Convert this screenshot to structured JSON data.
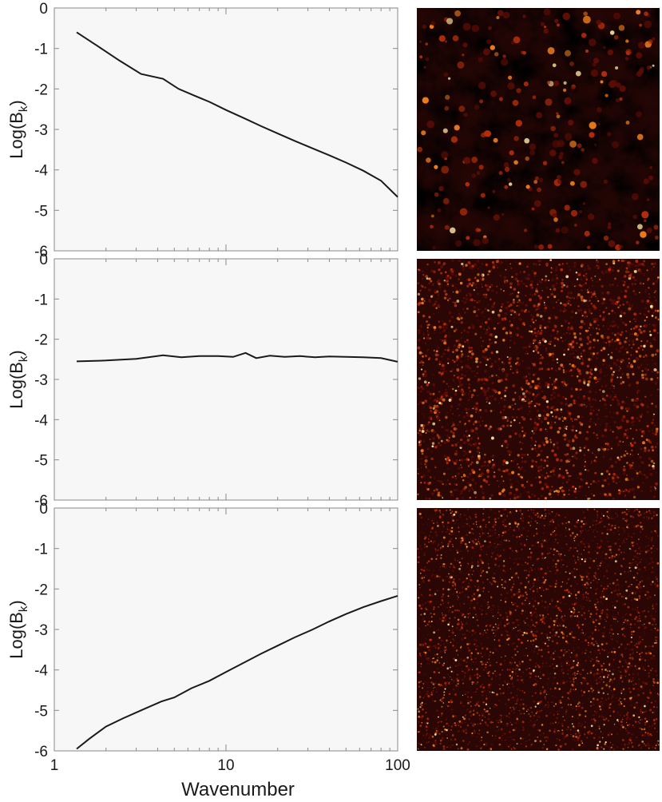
{
  "chart_data": [
    {
      "type": "line",
      "xscale": "log",
      "xlim": [
        1,
        100
      ],
      "ylim": [
        -6,
        0
      ],
      "xticks": [
        "1",
        "10",
        "100"
      ],
      "yticks": [
        "0",
        "-1",
        "-2",
        "-3",
        "-4",
        "-5",
        "-6"
      ],
      "ylabel": "Log(B",
      "ylabel_sub": "k",
      "xlabel": "",
      "grid": false,
      "series": [
        {
          "x": [
            1.35,
            1.8,
            2.4,
            3.2,
            4.3,
            5.3,
            6.5,
            8,
            10,
            13,
            16,
            20,
            25,
            32,
            40,
            50,
            63,
            80,
            105
          ],
          "y": [
            -0.6,
            -0.95,
            -1.3,
            -1.63,
            -1.75,
            -2.0,
            -2.16,
            -2.32,
            -2.52,
            -2.74,
            -2.92,
            -3.1,
            -3.28,
            -3.47,
            -3.64,
            -3.82,
            -4.02,
            -4.27,
            -4.67
          ]
        }
      ]
    },
    {
      "type": "line",
      "xscale": "log",
      "xlim": [
        1,
        100
      ],
      "ylim": [
        -6,
        0
      ],
      "xticks": [
        "1",
        "10",
        "100"
      ],
      "yticks": [
        "0",
        "-1",
        "-2",
        "-3",
        "-4",
        "-5",
        "-6"
      ],
      "ylabel": "Log(B",
      "ylabel_sub": "k",
      "xlabel": "",
      "grid": false,
      "series": [
        {
          "x": [
            1.35,
            2,
            3,
            4.3,
            5.5,
            7,
            9,
            11,
            13,
            15,
            18,
            22,
            27,
            33,
            40,
            50,
            63,
            80,
            105
          ],
          "y": [
            -2.55,
            -2.53,
            -2.49,
            -2.4,
            -2.45,
            -2.42,
            -2.42,
            -2.44,
            -2.34,
            -2.47,
            -2.41,
            -2.44,
            -2.42,
            -2.45,
            -2.43,
            -2.44,
            -2.45,
            -2.47,
            -2.56
          ]
        }
      ]
    },
    {
      "type": "line",
      "xscale": "log",
      "xlim": [
        1,
        100
      ],
      "ylim": [
        -6,
        0
      ],
      "xticks": [
        "1",
        "10",
        "100"
      ],
      "yticks": [
        "0",
        "-1",
        "-2",
        "-3",
        "-4",
        "-5",
        "-6"
      ],
      "ylabel": "Log(B",
      "ylabel_sub": "k",
      "xlabel": "Wavenumber",
      "grid": false,
      "series": [
        {
          "x": [
            1.35,
            1.6,
            2,
            2.5,
            3.2,
            4.2,
            5,
            6.3,
            8,
            10,
            13,
            16,
            20,
            25,
            32,
            40,
            50,
            63,
            80,
            105
          ],
          "y": [
            -5.95,
            -5.7,
            -5.4,
            -5.2,
            -5.0,
            -4.78,
            -4.68,
            -4.45,
            -4.27,
            -4.05,
            -3.8,
            -3.6,
            -3.4,
            -3.2,
            -3.0,
            -2.8,
            -2.62,
            -2.45,
            -2.3,
            -2.17
          ]
        }
      ]
    }
  ],
  "textures": [
    {
      "name": "texture-map-top",
      "grain": "coarse",
      "palette": [
        "#1a0402",
        "#5e0d05",
        "#b62d0b",
        "#ee7c1c",
        "#ffe7a0"
      ]
    },
    {
      "name": "texture-map-middle",
      "grain": "fine",
      "palette": [
        "#1a0402",
        "#5e0d05",
        "#b62d0b",
        "#ee7c1c",
        "#ffe7a0"
      ]
    },
    {
      "name": "texture-map-bottom",
      "grain": "finest",
      "palette": [
        "#1a0402",
        "#5e0d05",
        "#b62d0b",
        "#ee7c1c",
        "#ffe7a0"
      ]
    }
  ],
  "colors": {
    "line": "#1a1a1a",
    "axis": "#8a8a8a",
    "plot_bg": "#f7f7f7"
  }
}
